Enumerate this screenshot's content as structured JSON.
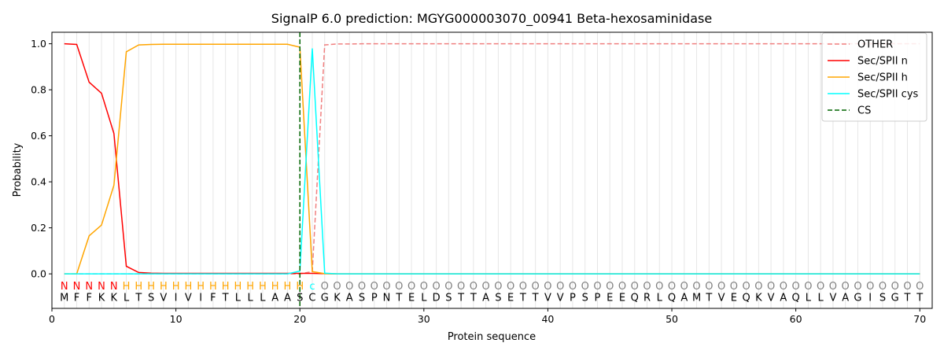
{
  "chart_data": {
    "type": "line",
    "title": "SignalP 6.0 prediction: MGYG000003070_00941 Beta-hexosaminidase",
    "xlabel": "Protein sequence",
    "ylabel": "Probability",
    "xlim": [
      0,
      71
    ],
    "ylim": [
      -0.15,
      1.05
    ],
    "x_ticks": [
      0,
      10,
      20,
      30,
      40,
      50,
      60,
      70
    ],
    "y_ticks": [
      0.0,
      0.2,
      0.4,
      0.6,
      0.8,
      1.0
    ],
    "x_tick_labels": [
      "0",
      "10",
      "20",
      "30",
      "40",
      "50",
      "60",
      "70"
    ],
    "y_tick_labels": [
      "0.0",
      "0.2",
      "0.4",
      "0.6",
      "0.8",
      "1.0"
    ],
    "grid": "vertical lines at every residue",
    "legend_position": "top-right",
    "sequence": [
      "M",
      "F",
      "F",
      "K",
      "K",
      "L",
      "T",
      "S",
      "V",
      "I",
      "V",
      "I",
      "F",
      "T",
      "L",
      "L",
      "L",
      "A",
      "A",
      "S",
      "C",
      "G",
      "K",
      "A",
      "S",
      "P",
      "N",
      "T",
      "E",
      "L",
      "D",
      "S",
      "T",
      "T",
      "A",
      "S",
      "E",
      "T",
      "T",
      "V",
      "V",
      "P",
      "S",
      "P",
      "E",
      "E",
      "Q",
      "R",
      "L",
      "Q",
      "A",
      "M",
      "T",
      "V",
      "E",
      "Q",
      "K",
      "V",
      "A",
      "Q",
      "L",
      "L",
      "V",
      "A",
      "G",
      "I",
      "S",
      "G",
      "T",
      "T"
    ],
    "labels": [
      "N",
      "N",
      "N",
      "N",
      "N",
      "H",
      "H",
      "H",
      "H",
      "H",
      "H",
      "H",
      "H",
      "H",
      "H",
      "H",
      "H",
      "H",
      "H",
      "H",
      "c",
      "O",
      "O",
      "O",
      "O",
      "O",
      "O",
      "O",
      "O",
      "O",
      "O",
      "O",
      "O",
      "O",
      "O",
      "O",
      "O",
      "O",
      "O",
      "O",
      "O",
      "O",
      "O",
      "O",
      "O",
      "O",
      "O",
      "O",
      "O",
      "O",
      "O",
      "O",
      "O",
      "O",
      "O",
      "O",
      "O",
      "O",
      "O",
      "O",
      "O",
      "O",
      "O",
      "O",
      "O",
      "O",
      "O",
      "O",
      "O",
      "O"
    ],
    "label_colors": {
      "N": "#ff0000",
      "H": "#ffa500",
      "c": "#00ffff",
      "O": "#808080"
    },
    "cleavage_site": 20,
    "series": [
      {
        "name": "OTHER",
        "color": "#f08080",
        "dash": "dashed",
        "values": [
          0,
          0,
          0,
          0,
          0,
          0,
          0,
          0,
          0,
          0,
          0,
          0,
          0,
          0,
          0,
          0,
          0,
          0,
          0,
          0,
          0.01,
          0.995,
          0.999,
          0.999,
          1,
          1,
          1,
          1,
          1,
          1,
          1,
          1,
          1,
          1,
          1,
          1,
          1,
          1,
          1,
          1,
          1,
          1,
          1,
          1,
          1,
          1,
          1,
          1,
          1,
          1,
          1,
          1,
          1,
          1,
          1,
          1,
          1,
          1,
          1,
          1,
          1,
          1,
          1,
          1,
          1,
          1,
          1,
          1,
          1,
          1
        ]
      },
      {
        "name": "Sec/SPII n",
        "color": "#ff0000",
        "dash": "solid",
        "values": [
          1.0,
          0.997,
          0.833,
          0.785,
          0.61,
          0.033,
          0.006,
          0.003,
          0.002,
          0.002,
          0.002,
          0.002,
          0.002,
          0.002,
          0.002,
          0.002,
          0.002,
          0.002,
          0.002,
          0.002,
          0.002,
          0.001,
          0,
          0,
          0,
          0,
          0,
          0,
          0,
          0,
          0,
          0,
          0,
          0,
          0,
          0,
          0,
          0,
          0,
          0,
          0,
          0,
          0,
          0,
          0,
          0,
          0,
          0,
          0,
          0,
          0,
          0,
          0,
          0,
          0,
          0,
          0,
          0,
          0,
          0,
          0,
          0,
          0,
          0,
          0,
          0,
          0,
          0,
          0,
          0
        ]
      },
      {
        "name": "Sec/SPII h",
        "color": "#ffa500",
        "dash": "solid",
        "values": [
          0,
          0,
          0.165,
          0.212,
          0.385,
          0.965,
          0.995,
          0.997,
          0.998,
          0.998,
          0.998,
          0.998,
          0.998,
          0.998,
          0.998,
          0.998,
          0.998,
          0.998,
          0.998,
          0.985,
          0.01,
          0.001,
          0,
          0,
          0,
          0,
          0,
          0,
          0,
          0,
          0,
          0,
          0,
          0,
          0,
          0,
          0,
          0,
          0,
          0,
          0,
          0,
          0,
          0,
          0,
          0,
          0,
          0,
          0,
          0,
          0,
          0,
          0,
          0,
          0,
          0,
          0,
          0,
          0,
          0,
          0,
          0,
          0,
          0,
          0,
          0,
          0,
          0,
          0,
          0
        ]
      },
      {
        "name": "Sec/SPII cys",
        "color": "#00ffff",
        "dash": "solid",
        "values": [
          0,
          0,
          0,
          0,
          0,
          0,
          0,
          0,
          0,
          0,
          0,
          0,
          0,
          0,
          0,
          0,
          0,
          0,
          0,
          0.012,
          0.98,
          0.003,
          0,
          0,
          0,
          0,
          0,
          0,
          0,
          0,
          0,
          0,
          0,
          0,
          0,
          0,
          0,
          0,
          0,
          0,
          0,
          0,
          0,
          0,
          0,
          0,
          0,
          0,
          0,
          0,
          0,
          0,
          0,
          0,
          0,
          0,
          0,
          0,
          0,
          0,
          0,
          0,
          0,
          0,
          0,
          0,
          0,
          0,
          0,
          0
        ]
      }
    ],
    "legend": [
      {
        "label": "OTHER",
        "color": "#f08080",
        "dash": "dashed"
      },
      {
        "label": "Sec/SPII n",
        "color": "#ff0000",
        "dash": "solid"
      },
      {
        "label": "Sec/SPII h",
        "color": "#ffa500",
        "dash": "solid"
      },
      {
        "label": "Sec/SPII cys",
        "color": "#00ffff",
        "dash": "solid"
      },
      {
        "label": "CS",
        "color": "#006400",
        "dash": "dashed"
      }
    ]
  }
}
